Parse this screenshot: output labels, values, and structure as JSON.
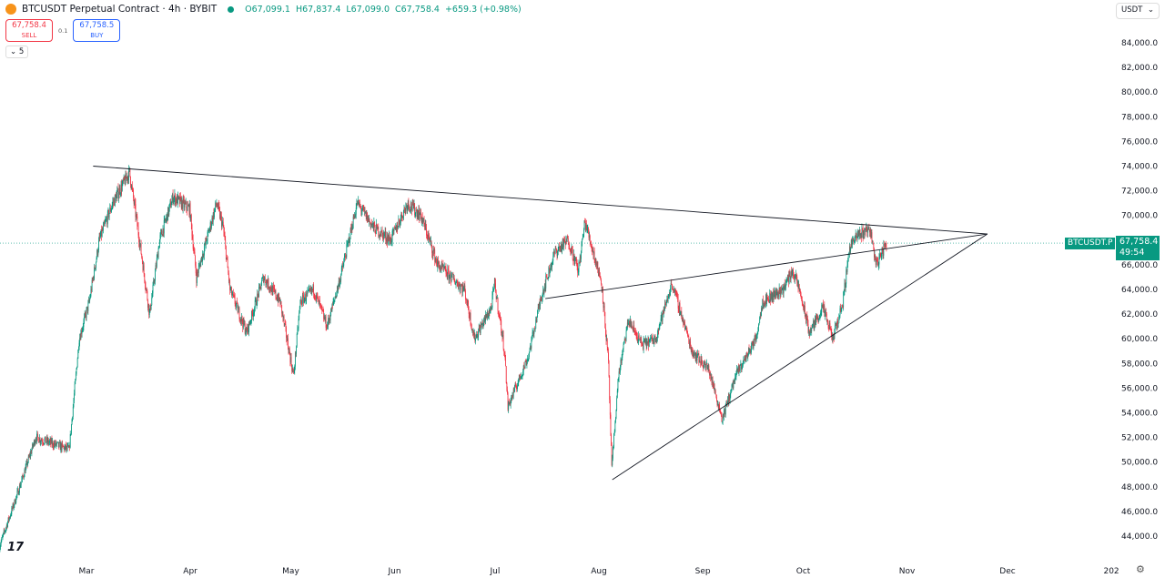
{
  "header": {
    "symbol": "BTCUSDT Perpetual Contract · 4h · BYBIT",
    "open": "O67,099.1",
    "high": "H67,837.4",
    "low": "L67,099.0",
    "close": "C67,758.4",
    "change": "+659.3 (+0.98%)"
  },
  "trade": {
    "sell_price": "67,758.4",
    "sell_label": "SELL",
    "spread": "0.1",
    "buy_price": "67,758.5",
    "buy_label": "BUY",
    "collapse_label": "5"
  },
  "currency": "USDT",
  "price_label": {
    "symbol": "BTCUSDT.P",
    "price": "67,758.4",
    "countdown": "49:54"
  },
  "logo_text": "TV",
  "colors": {
    "up": "#089981",
    "down": "#f23645",
    "trendline": "#131722"
  },
  "chart_data": {
    "type": "candlestick",
    "timeframe": "4h",
    "x_ticks": [
      "Mar",
      "Apr",
      "May",
      "Jun",
      "Jul",
      "Aug",
      "Sep",
      "Oct",
      "Nov",
      "Dec",
      "202"
    ],
    "x_tick_dates": [
      "2024-03-01",
      "2024-04-01",
      "2024-05-01",
      "2024-06-01",
      "2024-07-01",
      "2024-08-01",
      "2024-09-01",
      "2024-10-01",
      "2024-11-01",
      "2024-12-01",
      "2025-01-01"
    ],
    "y_ticks": [
      44000,
      46000,
      48000,
      50000,
      52000,
      54000,
      56000,
      58000,
      60000,
      62000,
      64000,
      66000,
      68000,
      70000,
      72000,
      74000,
      76000,
      78000,
      80000,
      82000,
      84000
    ],
    "y_tick_labels": [
      "44,000.0",
      "46,000.0",
      "48,000.0",
      "50,000.0",
      "52,000.0",
      "54,000.0",
      "56,000.0",
      "58,000.0",
      "60,000.0",
      "62,000.0",
      "64,000.0",
      "66,000.0",
      "68,000.0",
      "70,000.0",
      "72,000.0",
      "74,000.0",
      "76,000.0",
      "78,000.0",
      "80,000.0",
      "82,000.0",
      "84,000.0"
    ],
    "ylim": [
      42800,
      86000
    ],
    "last_price": 67758.4,
    "price_path": [
      [
        "2024-02-04",
        43000
      ],
      [
        "2024-02-09",
        47000
      ],
      [
        "2024-02-15",
        52000
      ],
      [
        "2024-02-25",
        51000
      ],
      [
        "2024-02-28",
        60000
      ],
      [
        "2024-03-02",
        63000
      ],
      [
        "2024-03-05",
        68000
      ],
      [
        "2024-03-09",
        71000
      ],
      [
        "2024-03-14",
        73500
      ],
      [
        "2024-03-17",
        68000
      ],
      [
        "2024-03-20",
        62000
      ],
      [
        "2024-03-23",
        68000
      ],
      [
        "2024-03-27",
        71500
      ],
      [
        "2024-04-01",
        70500
      ],
      [
        "2024-04-03",
        65000
      ],
      [
        "2024-04-09",
        71000
      ],
      [
        "2024-04-11",
        69000
      ],
      [
        "2024-04-13",
        64000
      ],
      [
        "2024-04-18",
        60500
      ],
      [
        "2024-04-23",
        65000
      ],
      [
        "2024-04-28",
        63000
      ],
      [
        "2024-05-02",
        57000
      ],
      [
        "2024-05-04",
        63000
      ],
      [
        "2024-05-08",
        64000
      ],
      [
        "2024-05-12",
        61000
      ],
      [
        "2024-05-16",
        65000
      ],
      [
        "2024-05-21",
        71000
      ],
      [
        "2024-05-26",
        69000
      ],
      [
        "2024-05-31",
        68000
      ],
      [
        "2024-06-05",
        71000
      ],
      [
        "2024-06-09",
        70000
      ],
      [
        "2024-06-14",
        66000
      ],
      [
        "2024-06-22",
        64000
      ],
      [
        "2024-06-25",
        60000
      ],
      [
        "2024-06-30",
        62500
      ],
      [
        "2024-07-01",
        64500
      ],
      [
        "2024-07-04",
        59000
      ],
      [
        "2024-07-05",
        54500
      ],
      [
        "2024-07-11",
        58500
      ],
      [
        "2024-07-15",
        63500
      ],
      [
        "2024-07-19",
        67000
      ],
      [
        "2024-07-23",
        68000
      ],
      [
        "2024-07-26",
        65500
      ],
      [
        "2024-07-28",
        69500
      ],
      [
        "2024-08-02",
        64500
      ],
      [
        "2024-08-04",
        58000
      ],
      [
        "2024-08-05",
        49500
      ],
      [
        "2024-08-07",
        57000
      ],
      [
        "2024-08-10",
        61500
      ],
      [
        "2024-08-14",
        59500
      ],
      [
        "2024-08-18",
        60000
      ],
      [
        "2024-08-23",
        64500
      ],
      [
        "2024-08-29",
        59000
      ],
      [
        "2024-09-03",
        57500
      ],
      [
        "2024-09-07",
        53500
      ],
      [
        "2024-09-11",
        57000
      ],
      [
        "2024-09-17",
        60000
      ],
      [
        "2024-09-19",
        63000
      ],
      [
        "2024-09-25",
        64000
      ],
      [
        "2024-09-28",
        65500
      ],
      [
        "2024-09-30",
        64000
      ],
      [
        "2024-10-03",
        60500
      ],
      [
        "2024-10-07",
        62500
      ],
      [
        "2024-10-10",
        60000
      ],
      [
        "2024-10-13",
        63000
      ],
      [
        "2024-10-15",
        67500
      ],
      [
        "2024-10-18",
        68500
      ],
      [
        "2024-10-21",
        69000
      ],
      [
        "2024-10-23",
        66000
      ],
      [
        "2024-10-26",
        67758.4
      ]
    ],
    "trendlines": [
      {
        "from": [
          "2024-03-03",
          74000
        ],
        "to": [
          "2024-11-25",
          68500
        ]
      },
      {
        "from": [
          "2024-07-16",
          63260
        ],
        "to": [
          "2024-11-25",
          68500
        ]
      },
      {
        "from": [
          "2024-08-05",
          48580
        ],
        "to": [
          "2024-11-25",
          68500
        ]
      }
    ]
  }
}
